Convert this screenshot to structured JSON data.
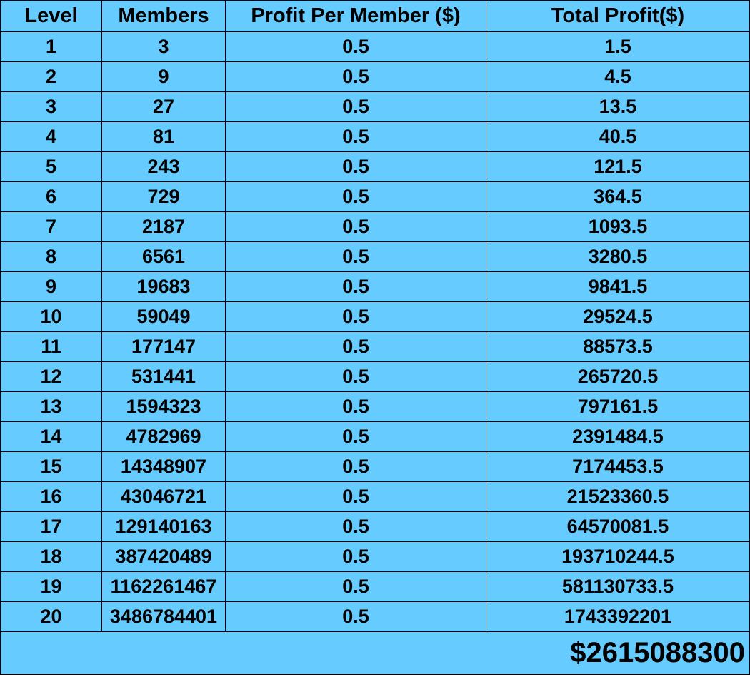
{
  "headers": [
    "Level",
    "Members",
    "Profit Per Member ($)",
    "Total Profit($)"
  ],
  "rows": [
    [
      "1",
      "3",
      "0.5",
      "1.5"
    ],
    [
      "2",
      "9",
      "0.5",
      "4.5"
    ],
    [
      "3",
      "27",
      "0.5",
      "13.5"
    ],
    [
      "4",
      "81",
      "0.5",
      "40.5"
    ],
    [
      "5",
      "243",
      "0.5",
      "121.5"
    ],
    [
      "6",
      "729",
      "0.5",
      "364.5"
    ],
    [
      "7",
      "2187",
      "0.5",
      "1093.5"
    ],
    [
      "8",
      "6561",
      "0.5",
      "3280.5"
    ],
    [
      "9",
      "19683",
      "0.5",
      "9841.5"
    ],
    [
      "10",
      "59049",
      "0.5",
      "29524.5"
    ],
    [
      "11",
      "177147",
      "0.5",
      "88573.5"
    ],
    [
      "12",
      "531441",
      "0.5",
      "265720.5"
    ],
    [
      "13",
      "1594323",
      "0.5",
      "797161.5"
    ],
    [
      "14",
      "4782969",
      "0.5",
      "2391484.5"
    ],
    [
      "15",
      "14348907",
      "0.5",
      "7174453.5"
    ],
    [
      "16",
      "43046721",
      "0.5",
      "21523360.5"
    ],
    [
      "17",
      "129140163",
      "0.5",
      "64570081.5"
    ],
    [
      "18",
      "387420489",
      "0.5",
      "193710244.5"
    ],
    [
      "19",
      "1162261467",
      "0.5",
      "581130733.5"
    ],
    [
      "20",
      "3486784401",
      "0.5",
      "1743392201"
    ]
  ],
  "grand_total": "$2615088300",
  "colors": {
    "cell_background": "#66ccff",
    "border": "#000000",
    "text": "#000000"
  }
}
